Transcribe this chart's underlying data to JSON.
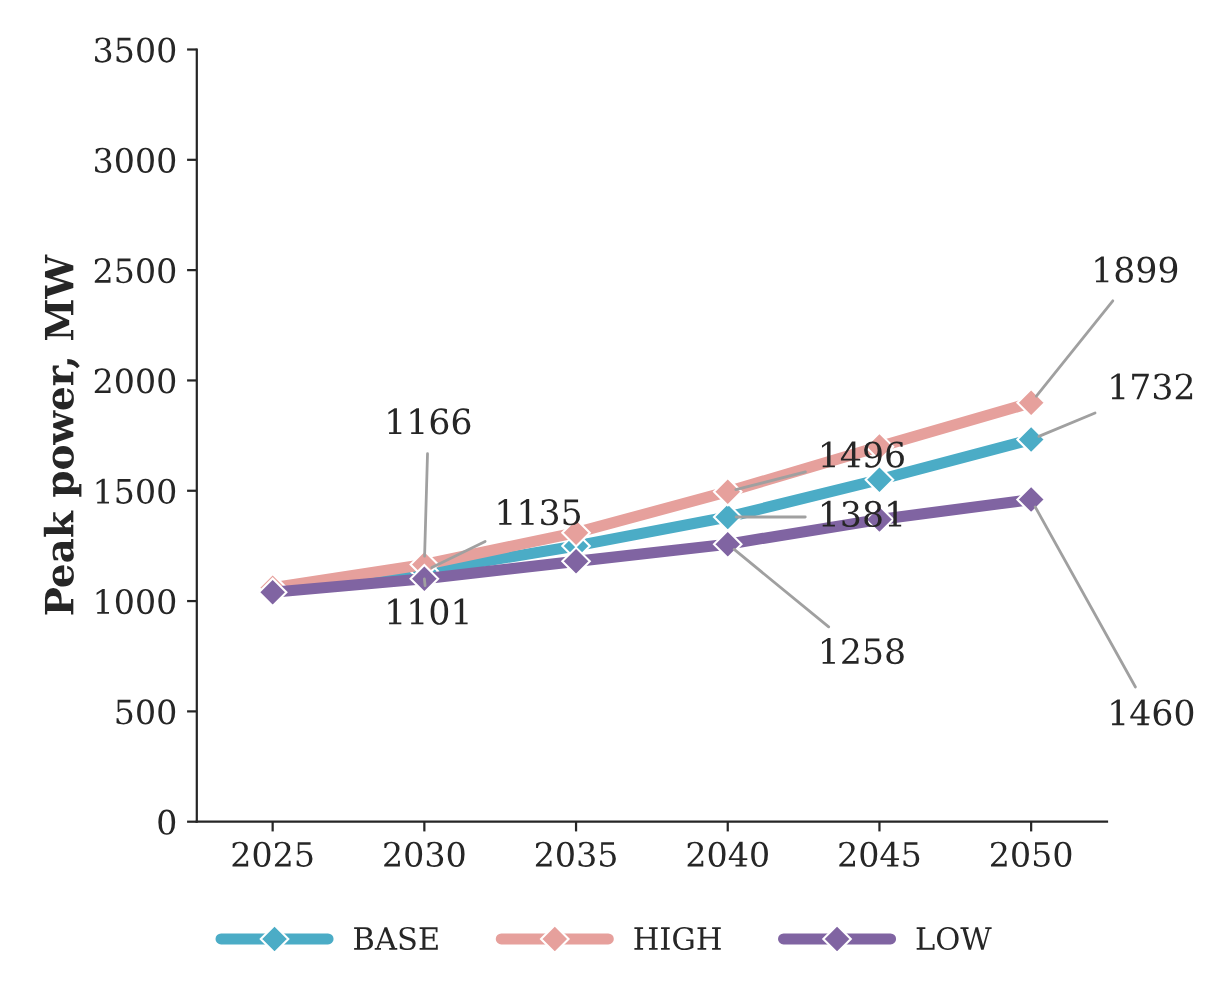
{
  "chart_data": {
    "type": "line",
    "categories": [
      "2025",
      "2030",
      "2035",
      "2040",
      "2045",
      "2050"
    ],
    "ylabel": "Peak power, MW",
    "ylim": [
      0,
      3500
    ],
    "yticks": [
      0,
      500,
      1000,
      1500,
      2000,
      2500,
      3000,
      3500
    ],
    "grid": false,
    "legend": "bottom",
    "marker": "diamond",
    "line_style": "solid",
    "series": [
      {
        "name": "BASE",
        "color": "#4bacc6",
        "values": [
          1050,
          1135,
          1250,
          1381,
          1550,
          1732
        ],
        "value_labels": [
          null,
          "1135",
          null,
          "1381",
          null,
          "1732"
        ]
      },
      {
        "name": "HIGH",
        "color": "#e6a09c",
        "values": [
          1060,
          1166,
          1310,
          1496,
          1700,
          1899
        ],
        "value_labels": [
          null,
          "1166",
          null,
          "1496",
          null,
          "1899"
        ]
      },
      {
        "name": "LOW",
        "color": "#8064a2",
        "values": [
          1040,
          1101,
          1180,
          1258,
          1370,
          1460
        ],
        "value_labels": [
          null,
          "1101",
          null,
          "1258",
          null,
          "1460"
        ]
      }
    ]
  }
}
